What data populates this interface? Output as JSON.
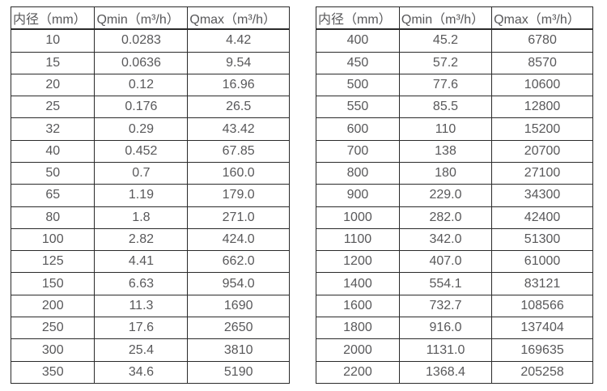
{
  "colors": {
    "background": "#ffffff",
    "text": "#58585a",
    "border": "#2a2a2a"
  },
  "tables": [
    {
      "name": "small-diameters-flow-table",
      "columns": [
        "内径（mm）",
        "Qmin（m³/h）",
        "Qmax（m³/h）"
      ],
      "rows": [
        [
          "10",
          "0.0283",
          "4.42"
        ],
        [
          "15",
          "0.0636",
          "9.54"
        ],
        [
          "20",
          "0.12",
          "16.96"
        ],
        [
          "25",
          "0.176",
          "26.5"
        ],
        [
          "32",
          "0.29",
          "43.42"
        ],
        [
          "40",
          "0.452",
          "67.85"
        ],
        [
          "50",
          "0.7",
          "160.0"
        ],
        [
          "65",
          "1.19",
          "179.0"
        ],
        [
          "80",
          "1.8",
          "271.0"
        ],
        [
          "100",
          "2.82",
          "424.0"
        ],
        [
          "125",
          "4.41",
          "662.0"
        ],
        [
          "150",
          "6.63",
          "954.0"
        ],
        [
          "200",
          "11.3",
          "1690"
        ],
        [
          "250",
          "17.6",
          "2650"
        ],
        [
          "300",
          "25.4",
          "3810"
        ],
        [
          "350",
          "34.6",
          "5190"
        ]
      ]
    },
    {
      "name": "large-diameters-flow-table",
      "columns": [
        "内径（mm）",
        "Qmin（m³/h）",
        "Qmax（m³/h）"
      ],
      "rows": [
        [
          "400",
          "45.2",
          "6780"
        ],
        [
          "450",
          "57.2",
          "8570"
        ],
        [
          "500",
          "77.6",
          "10600"
        ],
        [
          "550",
          "85.5",
          "12800"
        ],
        [
          "600",
          "110",
          "15200"
        ],
        [
          "700",
          "138",
          "20700"
        ],
        [
          "800",
          "180",
          "27100"
        ],
        [
          "900",
          "229.0",
          "34300"
        ],
        [
          "1000",
          "282.0",
          "42400"
        ],
        [
          "1100",
          "342.0",
          "51300"
        ],
        [
          "1200",
          "407.0",
          "61000"
        ],
        [
          "1400",
          "554.1",
          "83121"
        ],
        [
          "1600",
          "732.7",
          "108566"
        ],
        [
          "1800",
          "916.0",
          "137404"
        ],
        [
          "2000",
          "1131.0",
          "169635"
        ],
        [
          "2200",
          "1368.4",
          "205258"
        ]
      ]
    }
  ]
}
